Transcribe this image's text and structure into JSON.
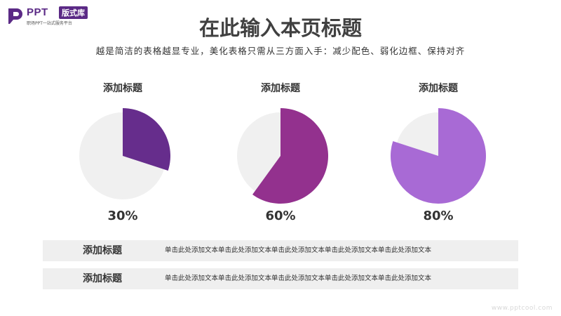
{
  "logo": {
    "ppt": "PPT",
    "badge": "版式库",
    "tagline": "职场PPT一站式服务平台"
  },
  "title": "在此输入本页标题",
  "subtitle": "越是简洁的表格越显专业，美化表格只需从三方面入手：减少配色、弱化边框、保持对齐",
  "colors": {
    "pie_background": "#f0f0f0",
    "pie1": "#662d8c",
    "pie2": "#93318e",
    "pie3": "#a86ad5",
    "row_background": "#efefef"
  },
  "pies": [
    {
      "label": "添加标题",
      "percent_text": "30%",
      "value": 30
    },
    {
      "label": "添加标题",
      "percent_text": "60%",
      "value": 60
    },
    {
      "label": "添加标题",
      "percent_text": "80%",
      "value": 80
    }
  ],
  "rows": [
    {
      "title": "添加标题",
      "text": "单击此处添加文本单击此处添加文本单击此处添加文本单击此处添加文本单击此处添加文本"
    },
    {
      "title": "添加标题",
      "text": "单击此处添加文本单击此处添加文本单击此处添加文本单击此处添加文本单击此处添加文本"
    }
  ],
  "watermark": "www.pptcool.com"
}
